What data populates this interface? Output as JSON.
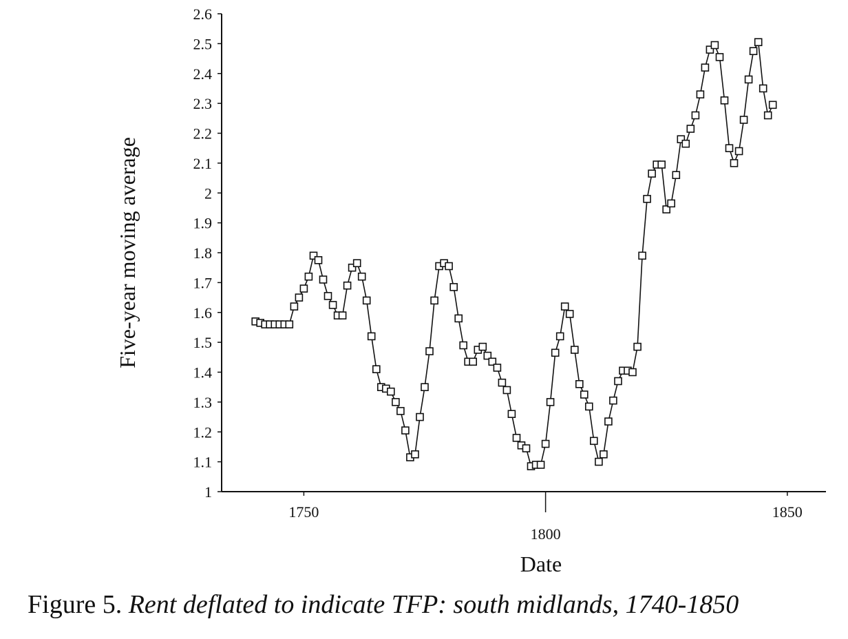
{
  "chart_data": {
    "type": "line",
    "xlabel": "Date",
    "ylabel": "Five-year moving average",
    "xlim": [
      1733,
      1858
    ],
    "ylim": [
      1,
      2.6
    ],
    "x_ticks": [
      {
        "value": 1750,
        "label": "1750"
      },
      {
        "value": 1800,
        "label": "1800"
      },
      {
        "value": 1850,
        "label": "1850"
      }
    ],
    "y_ticks": [
      {
        "value": 2.6,
        "label": "2.6"
      },
      {
        "value": 2.5,
        "label": "2.5"
      },
      {
        "value": 2.4,
        "label": "2.4"
      },
      {
        "value": 2.3,
        "label": "2.3"
      },
      {
        "value": 2.2,
        "label": "2.2"
      },
      {
        "value": 2.1,
        "label": "2.1"
      },
      {
        "value": 2.0,
        "label": "2"
      },
      {
        "value": 1.9,
        "label": "1.9"
      },
      {
        "value": 1.8,
        "label": "1.8"
      },
      {
        "value": 1.7,
        "label": "1.7"
      },
      {
        "value": 1.6,
        "label": "1.6"
      },
      {
        "value": 1.5,
        "label": "1.5"
      },
      {
        "value": 1.4,
        "label": "1.4"
      },
      {
        "value": 1.3,
        "label": "1.3"
      },
      {
        "value": 1.2,
        "label": "1.2"
      },
      {
        "value": 1.1,
        "label": "1.1"
      },
      {
        "value": 1.0,
        "label": "1"
      }
    ],
    "marker": "open-square",
    "line_color": "#111111",
    "series": [
      {
        "x": [
          1740,
          1741,
          1742,
          1743,
          1744,
          1745,
          1746,
          1747,
          1748,
          1749,
          1750,
          1751,
          1752,
          1753,
          1754,
          1755,
          1756,
          1757,
          1758,
          1759,
          1760,
          1761,
          1762,
          1763,
          1764,
          1765,
          1766,
          1767,
          1768,
          1769,
          1770,
          1771,
          1772,
          1773,
          1774,
          1775,
          1776,
          1777,
          1778,
          1779,
          1780,
          1781,
          1782,
          1783,
          1784,
          1785,
          1786,
          1787,
          1788,
          1789,
          1790,
          1791,
          1792,
          1793,
          1794,
          1795,
          1796,
          1797,
          1798,
          1799,
          1800,
          1801,
          1802,
          1803,
          1804,
          1805,
          1806,
          1807,
          1808,
          1809,
          1810,
          1811,
          1812,
          1813,
          1814,
          1815,
          1816,
          1817,
          1818,
          1819,
          1820,
          1821,
          1822,
          1823,
          1824,
          1825,
          1826,
          1827,
          1828,
          1829,
          1830,
          1831,
          1832,
          1833,
          1834,
          1835,
          1836,
          1837,
          1838,
          1839,
          1840,
          1841,
          1842,
          1843,
          1844,
          1845,
          1846,
          1847
        ],
        "y": [
          1.57,
          1.565,
          1.56,
          1.56,
          1.56,
          1.56,
          1.56,
          1.56,
          1.62,
          1.65,
          1.68,
          1.72,
          1.79,
          1.775,
          1.71,
          1.655,
          1.625,
          1.59,
          1.59,
          1.69,
          1.75,
          1.765,
          1.72,
          1.64,
          1.52,
          1.41,
          1.35,
          1.345,
          1.335,
          1.3,
          1.27,
          1.205,
          1.115,
          1.125,
          1.25,
          1.35,
          1.47,
          1.64,
          1.755,
          1.765,
          1.755,
          1.685,
          1.58,
          1.49,
          1.435,
          1.435,
          1.475,
          1.485,
          1.455,
          1.435,
          1.415,
          1.365,
          1.34,
          1.26,
          1.18,
          1.155,
          1.145,
          1.085,
          1.09,
          1.09,
          1.16,
          1.3,
          1.465,
          1.52,
          1.62,
          1.595,
          1.475,
          1.36,
          1.325,
          1.285,
          1.17,
          1.1,
          1.125,
          1.235,
          1.305,
          1.37,
          1.405,
          1.405,
          1.4,
          1.485,
          1.79,
          1.98,
          2.065,
          2.095,
          2.095,
          1.945,
          1.965,
          2.06,
          2.18,
          2.165,
          2.215,
          2.26,
          2.33,
          2.42,
          2.48,
          2.495,
          2.455,
          2.31,
          2.15,
          2.1,
          2.14,
          2.245,
          2.38,
          2.475,
          2.505,
          2.35,
          2.26,
          2.295
        ]
      }
    ]
  },
  "caption": {
    "prefix": "Figure 5.",
    "text": "Rent deflated to indicate TFP: south midlands, 1740-1850"
  }
}
